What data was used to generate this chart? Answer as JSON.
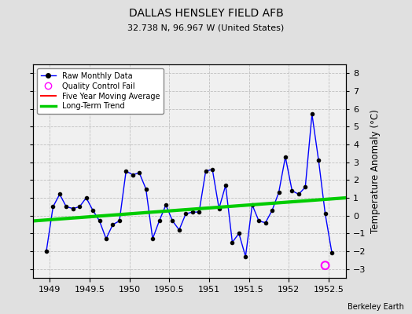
{
  "title": "DALLAS HENSLEY FIELD AFB",
  "subtitle": "32.738 N, 96.967 W (United States)",
  "ylabel": "Temperature Anomaly (°C)",
  "watermark": "Berkeley Earth",
  "xlim": [
    1948.79,
    1952.72
  ],
  "ylim": [
    -3.5,
    8.5
  ],
  "yticks": [
    -3,
    -2,
    -1,
    0,
    1,
    2,
    3,
    4,
    5,
    6,
    7,
    8
  ],
  "xticks": [
    1949,
    1949.5,
    1950,
    1950.5,
    1951,
    1951.5,
    1952,
    1952.5
  ],
  "bg_color": "#e0e0e0",
  "plot_bg_color": "#f0f0f0",
  "grid_color": "#c0c0c0",
  "raw_x": [
    1948.958,
    1949.042,
    1949.125,
    1949.208,
    1949.292,
    1949.375,
    1949.458,
    1949.542,
    1949.625,
    1949.708,
    1949.792,
    1949.875,
    1949.958,
    1950.042,
    1950.125,
    1950.208,
    1950.292,
    1950.375,
    1950.458,
    1950.542,
    1950.625,
    1950.708,
    1950.792,
    1950.875,
    1950.958,
    1951.042,
    1951.125,
    1951.208,
    1951.292,
    1951.375,
    1951.458,
    1951.542,
    1951.625,
    1951.708,
    1951.792,
    1951.875,
    1951.958,
    1952.042,
    1952.125,
    1952.208,
    1952.292,
    1952.375,
    1952.458,
    1952.542
  ],
  "raw_y": [
    -2.0,
    0.5,
    1.2,
    0.5,
    0.4,
    0.5,
    1.0,
    0.3,
    -0.3,
    -1.3,
    -0.5,
    -0.3,
    2.5,
    2.3,
    2.4,
    1.5,
    -1.3,
    -0.3,
    0.6,
    -0.3,
    -0.8,
    0.1,
    0.2,
    0.2,
    2.5,
    2.6,
    0.4,
    1.7,
    -1.5,
    -1.0,
    -2.3,
    0.6,
    -0.3,
    -0.4,
    0.3,
    1.3,
    3.3,
    1.4,
    1.2,
    1.6,
    5.7,
    3.1,
    0.1,
    -2.1
  ],
  "qc_fail_x": [
    1952.458
  ],
  "qc_fail_y": [
    -2.8
  ],
  "trend_x": [
    1948.79,
    1952.72
  ],
  "trend_y": [
    -0.3,
    1.0
  ],
  "raw_color": "#0000ff",
  "raw_marker_color": "#000000",
  "qc_color": "#ff00ff",
  "trend_color": "#00cc00",
  "moving_avg_color": "#ff0000",
  "legend_loc": "upper left"
}
